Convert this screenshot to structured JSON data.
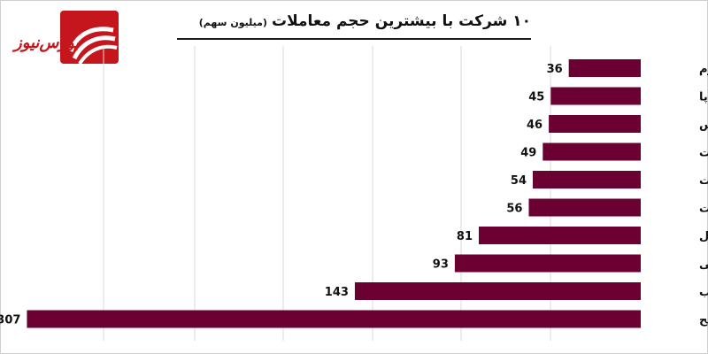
{
  "logo": {
    "text": "بورس‌نیوز",
    "color": "#c4161c"
  },
  "chart_data": {
    "type": "bar",
    "orientation": "horizontal",
    "title": "۱۰ شرکت با بیشترین حجم معاملات",
    "subtitle": "(میلیون سهم)",
    "categories": [
      "وخارزم",
      "خساپا",
      "خپارس",
      "فنفت",
      "وبملت",
      "وتجارت",
      "پترول",
      "شپلی",
      "ذوب",
      "وسکابح"
    ],
    "values": [
      36,
      45,
      46,
      49,
      54,
      56,
      81,
      93,
      143,
      307
    ],
    "xlim": [
      0,
      310
    ],
    "grid": true,
    "bar_color": "#6b0032"
  }
}
